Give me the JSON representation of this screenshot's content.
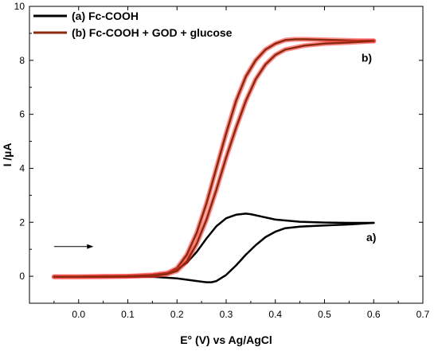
{
  "chart_data": {
    "type": "line",
    "xlabel": "E° (V)  vs Ag/AgCl",
    "ylabel": "I /µA",
    "xlim": [
      -0.1,
      0.7
    ],
    "ylim": [
      -1,
      10
    ],
    "xticks": [
      0.0,
      0.1,
      0.2,
      0.3,
      0.4,
      0.5,
      0.6,
      0.7
    ],
    "yticks": [
      0,
      2,
      4,
      6,
      8,
      10
    ],
    "xtick_labels": [
      "0.0",
      "0.1",
      "0.2",
      "0.3",
      "0.4",
      "0.5",
      "0.6",
      "0.7"
    ],
    "ytick_labels": [
      "0",
      "2",
      "4",
      "6",
      "8",
      "10"
    ],
    "grid": false,
    "legend_position": "top-left",
    "colors": {
      "a": "#000000",
      "b": "#8b2a0c",
      "b_glow": "#ff3030",
      "axis": "#000000"
    },
    "series": [
      {
        "name": "(a) Fc-COOH",
        "label": "a)",
        "segments": [
          {
            "x": [
              -0.05,
              0.0,
              0.05,
              0.1,
              0.15,
              0.18,
              0.2,
              0.22,
              0.24,
              0.26,
              0.28,
              0.3,
              0.32,
              0.34,
              0.35,
              0.37,
              0.4,
              0.45,
              0.5,
              0.55,
              0.6
            ],
            "y": [
              -0.02,
              -0.02,
              0.0,
              0.0,
              0.05,
              0.12,
              0.25,
              0.5,
              0.9,
              1.4,
              1.85,
              2.15,
              2.28,
              2.32,
              2.3,
              2.22,
              2.1,
              2.02,
              1.99,
              1.98,
              1.98
            ]
          },
          {
            "x": [
              0.6,
              0.55,
              0.5,
              0.45,
              0.42,
              0.4,
              0.38,
              0.36,
              0.34,
              0.32,
              0.3,
              0.28,
              0.27,
              0.26,
              0.25,
              0.23,
              0.2,
              0.15,
              0.1,
              0.05,
              0.0,
              -0.05
            ],
            "y": [
              1.98,
              1.92,
              1.88,
              1.84,
              1.78,
              1.65,
              1.45,
              1.15,
              0.8,
              0.4,
              0.05,
              -0.18,
              -0.22,
              -0.22,
              -0.2,
              -0.15,
              -0.08,
              -0.02,
              -0.02,
              -0.02,
              -0.02,
              -0.02
            ]
          }
        ]
      },
      {
        "name": "(b) Fc-COOH + GOD + glucose",
        "label": "b)",
        "segments": [
          {
            "x": [
              -0.05,
              0.0,
              0.05,
              0.1,
              0.15,
              0.18,
              0.2,
              0.22,
              0.24,
              0.26,
              0.28,
              0.3,
              0.32,
              0.34,
              0.36,
              0.38,
              0.4,
              0.42,
              0.44,
              0.46,
              0.5,
              0.55,
              0.6
            ],
            "y": [
              -0.02,
              -0.02,
              0.0,
              0.0,
              0.05,
              0.12,
              0.3,
              0.8,
              1.6,
              2.7,
              4.0,
              5.3,
              6.5,
              7.4,
              8.0,
              8.4,
              8.62,
              8.75,
              8.78,
              8.78,
              8.76,
              8.74,
              8.72
            ]
          },
          {
            "x": [
              0.6,
              0.55,
              0.5,
              0.46,
              0.42,
              0.4,
              0.38,
              0.36,
              0.34,
              0.32,
              0.3,
              0.28,
              0.26,
              0.24,
              0.22,
              0.2,
              0.18,
              0.15,
              0.1,
              0.05,
              0.0,
              -0.05
            ],
            "y": [
              8.72,
              8.66,
              8.62,
              8.55,
              8.4,
              8.2,
              7.85,
              7.3,
              6.5,
              5.5,
              4.4,
              3.2,
              2.1,
              1.2,
              0.55,
              0.2,
              0.08,
              0.02,
              0.0,
              -0.02,
              -0.02,
              -0.02
            ]
          }
        ]
      }
    ],
    "annotations": [
      {
        "type": "arrow",
        "x_from": -0.05,
        "x_to": 0.03,
        "y": 1.1
      }
    ]
  }
}
